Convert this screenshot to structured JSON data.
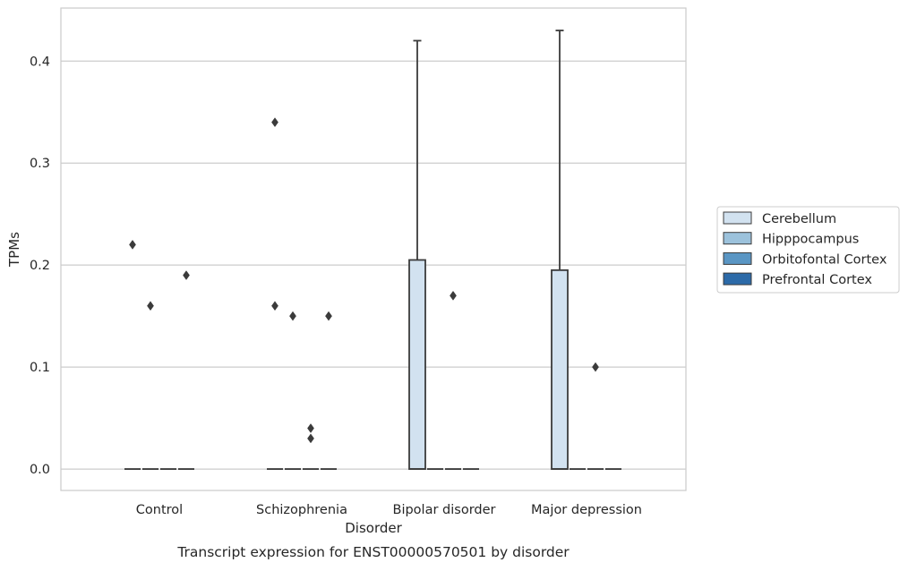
{
  "chart_data": {
    "type": "box",
    "xlabel": "Disorder",
    "ylabel": "TPMs",
    "caption": "Transcript expression for ENST00000570501 by disorder",
    "categories": [
      "Control",
      "Schizophrenia",
      "Bipolar disorder",
      "Major depression"
    ],
    "ylim": [
      -0.021,
      0.452
    ],
    "yticks": [
      0.0,
      0.1,
      0.2,
      0.3,
      0.4
    ],
    "ytick_labels": [
      "0.0",
      "0.1",
      "0.2",
      "0.3",
      "0.4"
    ],
    "grid": "horizontal",
    "legend_position": "right",
    "colors": {
      "Cerebellum": "#d2e2f0",
      "Hipppocampus": "#9cc2dc",
      "Orbitofontal Cortex": "#5a96c4",
      "Prefrontal Cortex": "#2c6aa8",
      "edge": "#3b3b3b",
      "grid": "#cccccc",
      "frame": "#cccccc"
    },
    "series": [
      {
        "name": "Cerebellum",
        "boxes": [
          {
            "category": "Control",
            "q1": 0.0,
            "median": 0.0,
            "q3": 0.0,
            "whisker_low": 0.0,
            "whisker_high": 0.0,
            "outliers": [
              0.22
            ]
          },
          {
            "category": "Schizophrenia",
            "q1": 0.0,
            "median": 0.0,
            "q3": 0.0,
            "whisker_low": 0.0,
            "whisker_high": 0.0,
            "outliers": [
              0.34,
              0.16
            ]
          },
          {
            "category": "Bipolar disorder",
            "q1": 0.0,
            "median": 0.0,
            "q3": 0.205,
            "whisker_low": 0.0,
            "whisker_high": 0.42,
            "outliers": []
          },
          {
            "category": "Major depression",
            "q1": 0.0,
            "median": 0.0,
            "q3": 0.195,
            "whisker_low": 0.0,
            "whisker_high": 0.43,
            "outliers": []
          }
        ]
      },
      {
        "name": "Hipppocampus",
        "boxes": [
          {
            "category": "Control",
            "q1": 0.0,
            "median": 0.0,
            "q3": 0.0,
            "whisker_low": 0.0,
            "whisker_high": 0.0,
            "outliers": [
              0.16
            ]
          },
          {
            "category": "Schizophrenia",
            "q1": 0.0,
            "median": 0.0,
            "q3": 0.0,
            "whisker_low": 0.0,
            "whisker_high": 0.0,
            "outliers": [
              0.15
            ]
          },
          {
            "category": "Bipolar disorder",
            "q1": 0.0,
            "median": 0.0,
            "q3": 0.0,
            "whisker_low": 0.0,
            "whisker_high": 0.0,
            "outliers": []
          },
          {
            "category": "Major depression",
            "q1": 0.0,
            "median": 0.0,
            "q3": 0.0,
            "whisker_low": 0.0,
            "whisker_high": 0.0,
            "outliers": []
          }
        ]
      },
      {
        "name": "Orbitofontal Cortex",
        "boxes": [
          {
            "category": "Control",
            "q1": 0.0,
            "median": 0.0,
            "q3": 0.0,
            "whisker_low": 0.0,
            "whisker_high": 0.0,
            "outliers": []
          },
          {
            "category": "Schizophrenia",
            "q1": 0.0,
            "median": 0.0,
            "q3": 0.0,
            "whisker_low": 0.0,
            "whisker_high": 0.0,
            "outliers": [
              0.04,
              0.03
            ]
          },
          {
            "category": "Bipolar disorder",
            "q1": 0.0,
            "median": 0.0,
            "q3": 0.0,
            "whisker_low": 0.0,
            "whisker_high": 0.0,
            "outliers": [
              0.17
            ]
          },
          {
            "category": "Major depression",
            "q1": 0.0,
            "median": 0.0,
            "q3": 0.0,
            "whisker_low": 0.0,
            "whisker_high": 0.0,
            "outliers": [
              0.1
            ]
          }
        ]
      },
      {
        "name": "Prefrontal Cortex",
        "boxes": [
          {
            "category": "Control",
            "q1": 0.0,
            "median": 0.0,
            "q3": 0.0,
            "whisker_low": 0.0,
            "whisker_high": 0.0,
            "outliers": [
              0.19
            ]
          },
          {
            "category": "Schizophrenia",
            "q1": 0.0,
            "median": 0.0,
            "q3": 0.0,
            "whisker_low": 0.0,
            "whisker_high": 0.0,
            "outliers": [
              0.15
            ]
          },
          {
            "category": "Bipolar disorder",
            "q1": 0.0,
            "median": 0.0,
            "q3": 0.0,
            "whisker_low": 0.0,
            "whisker_high": 0.0,
            "outliers": []
          },
          {
            "category": "Major depression",
            "q1": 0.0,
            "median": 0.0,
            "q3": 0.0,
            "whisker_low": 0.0,
            "whisker_high": 0.0,
            "outliers": []
          }
        ]
      }
    ]
  }
}
